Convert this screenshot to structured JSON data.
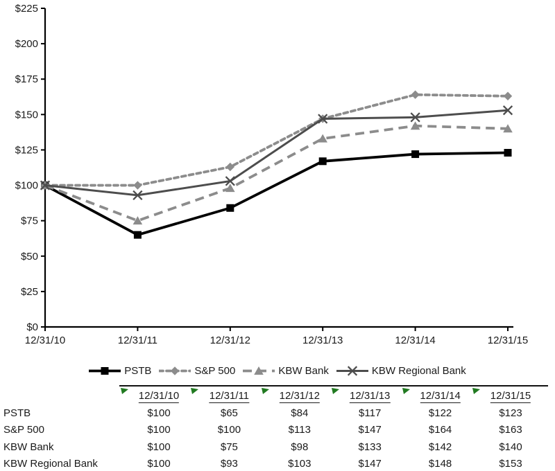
{
  "chart_data": {
    "type": "line",
    "title": "",
    "xlabel": "",
    "ylabel": "",
    "categories": [
      "12/31/10",
      "12/31/11",
      "12/31/12",
      "12/31/13",
      "12/31/14",
      "12/31/15"
    ],
    "series": [
      {
        "name": "PSTB",
        "values": [
          100,
          65,
          84,
          117,
          122,
          123
        ],
        "color": "#000000",
        "marker": "square",
        "line_style": "solid"
      },
      {
        "name": "S&P 500",
        "values": [
          100,
          100,
          113,
          147,
          164,
          163
        ],
        "color": "#8c8c8c",
        "marker": "diamond",
        "line_style": "dotted"
      },
      {
        "name": "KBW Bank",
        "values": [
          100,
          75,
          98,
          133,
          142,
          140
        ],
        "color": "#8c8c8c",
        "marker": "triangle",
        "line_style": "dashed"
      },
      {
        "name": "KBW Regional Bank",
        "values": [
          100,
          93,
          103,
          147,
          148,
          153
        ],
        "color": "#4d4d4d",
        "marker": "x",
        "line_style": "solid"
      }
    ],
    "ylim": [
      0,
      225
    ],
    "ytick_step": 25,
    "ytick_labels": [
      "$0",
      "$25",
      "$50",
      "$75",
      "$100",
      "$125",
      "$150",
      "$175",
      "$200",
      "$225"
    ],
    "grid": false,
    "legend_position": "bottom"
  },
  "table": {
    "columns": [
      "12/31/10",
      "12/31/11",
      "12/31/12",
      "12/31/13",
      "12/31/14",
      "12/31/15"
    ],
    "rows": [
      {
        "label": "PSTB",
        "values": [
          "$100",
          "$65",
          "$84",
          "$117",
          "$122",
          "$123"
        ]
      },
      {
        "label": "S&P 500",
        "values": [
          "$100",
          "$100",
          "$113",
          "$147",
          "$164",
          "$163"
        ]
      },
      {
        "label": "KBW Bank",
        "values": [
          "$100",
          "$75",
          "$98",
          "$133",
          "$142",
          "$140"
        ]
      },
      {
        "label": "KBW Regional Bank",
        "values": [
          "$100",
          "$93",
          "$103",
          "$147",
          "$148",
          "$153"
        ]
      }
    ],
    "flag_color": "#217a21"
  },
  "colors": {
    "axis": "#000000",
    "text": "#1a1a1a"
  }
}
